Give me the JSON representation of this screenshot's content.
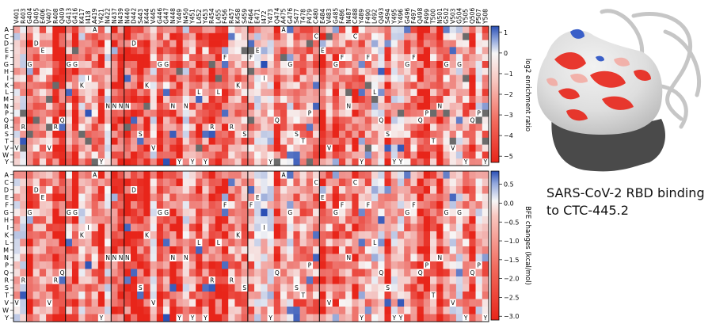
{
  "figure_caption": [
    "SARS-CoV-2 RBD binding",
    "to CTC-445.2"
  ],
  "colors": {
    "neg_max": "#e8251a",
    "neutral": "#f7f7f7",
    "pos_max": "#2a4fb5",
    "missing": "#6b6b6b",
    "structure_dark": "#4a4a4a",
    "structure_light": "#e8e8e8"
  },
  "chart_data": [
    {
      "type": "heatmap",
      "panel": "top",
      "x_tick_labels": [
        "V401",
        "R403",
        "G404",
        "D405",
        "E406",
        "V407",
        "R408",
        "Q409",
        "G413",
        "G416",
        "K417",
        "I418",
        "A419",
        "Y421",
        "N422",
        "N437",
        "N439",
        "N440",
        "D442",
        "S443",
        "K444",
        "V445",
        "G446",
        "G447",
        "N448",
        "Y449",
        "N450",
        "Y451",
        "L452",
        "Y453",
        "R454",
        "L455",
        "F456",
        "R457",
        "K458",
        "S459",
        "F464",
        "E471",
        "I472",
        "Y473",
        "Q474",
        "A475",
        "G476",
        "S477",
        "T478",
        "P479",
        "C480",
        "E484",
        "V483",
        "G485",
        "F486",
        "N487",
        "C488",
        "Y489",
        "F490",
        "L492",
        "Q493",
        "S494",
        "Y495",
        "Y496",
        "G496",
        "F497",
        "Q498",
        "P499",
        "T500",
        "N501",
        "G502",
        "V503",
        "G504",
        "Y505",
        "Q506",
        "P507",
        "Y508"
      ],
      "y_tick_labels": [
        "A",
        "C",
        "D",
        "E",
        "F",
        "G",
        "H",
        "I",
        "K",
        "L",
        "M",
        "N",
        "P",
        "Q",
        "R",
        "S",
        "T",
        "V",
        "W",
        "Y"
      ],
      "colorbar": {
        "label": "log2 enrichment ratio",
        "range": [
          -5.3,
          1.3
        ],
        "ticks": [
          "1",
          "0",
          "−1",
          "−2",
          "−3",
          "−4",
          "−5"
        ]
      },
      "cell_text": "wild-type residue letter",
      "group_boundaries": [
        "G404",
        "G413",
        "N437",
        "N440",
        "F464",
        "E484"
      ]
    },
    {
      "type": "heatmap",
      "panel": "bottom",
      "y_tick_labels": [
        "A",
        "C",
        "D",
        "E",
        "F",
        "G",
        "H",
        "I",
        "K",
        "L",
        "M",
        "N",
        "P",
        "Q",
        "R",
        "S",
        "T",
        "V",
        "W",
        "Y"
      ],
      "colorbar": {
        "label": "BFE changes (kcal/mol)",
        "range": [
          -3.1,
          0.85
        ],
        "ticks": [
          "0.5",
          "0.0",
          "−0.5",
          "−1.0",
          "−1.5",
          "−2.0",
          "−2.5",
          "−3.0"
        ]
      },
      "cell_text": "wild-type residue letter",
      "group_boundaries": [
        "G404",
        "G413",
        "N437",
        "N440",
        "F464",
        "E484"
      ]
    }
  ]
}
